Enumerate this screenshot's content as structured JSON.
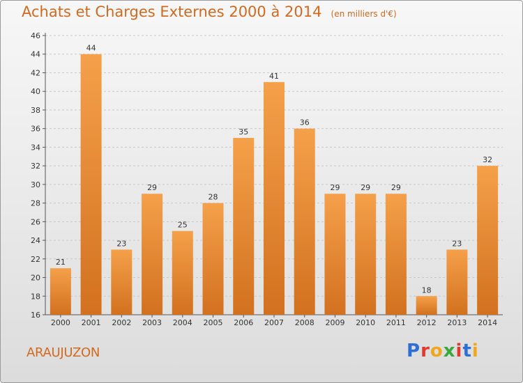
{
  "header": {
    "title": "Achats et Charges Externes 2000 à 2014",
    "subtitle": "(en milliers d'€)"
  },
  "footer": {
    "commune": "ARAUJUZON",
    "logo": "Proxiti"
  },
  "colors": {
    "bar_light": "#f5a04a",
    "bar_dark": "#d2711f",
    "title": "#d2691e",
    "logo_letters": [
      "#2e6fd6",
      "#e03a2e",
      "#f0a71c",
      "#3aa83a",
      "#e03a2e",
      "#2e6fd6",
      "#f0a71c"
    ]
  },
  "chart_data": {
    "type": "bar",
    "title": "Achats et Charges Externes 2000 à 2014",
    "subtitle": "(en milliers d'€)",
    "categories": [
      "2000",
      "2001",
      "2002",
      "2003",
      "2004",
      "2005",
      "2006",
      "2007",
      "2008",
      "2009",
      "2010",
      "2011",
      "2012",
      "2013",
      "2014"
    ],
    "values": [
      21,
      44,
      23,
      29,
      25,
      28,
      35,
      41,
      36,
      29,
      29,
      29,
      18,
      23,
      32
    ],
    "ylim": [
      16,
      46
    ],
    "yticks": [
      16,
      18,
      20,
      22,
      24,
      26,
      28,
      30,
      32,
      34,
      36,
      38,
      40,
      42,
      44,
      46
    ],
    "grid": true,
    "data_labels": true
  }
}
